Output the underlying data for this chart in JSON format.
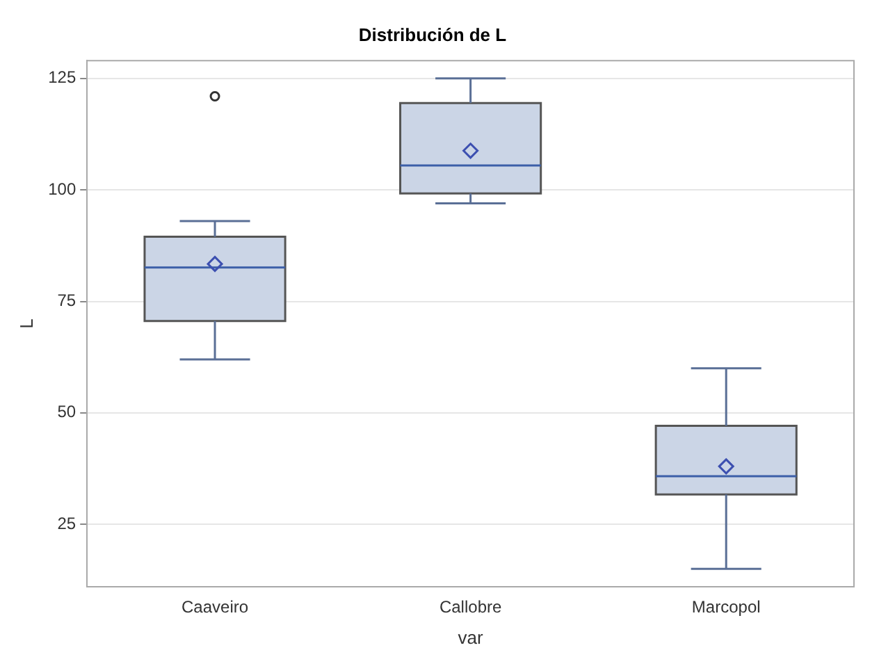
{
  "chart_data": {
    "type": "box",
    "title": "Distribución de L",
    "xlabel": "var",
    "ylabel": "L",
    "categories": [
      "Caaveiro",
      "Callobre",
      "Marcopol"
    ],
    "color": "#cbd5e6",
    "boxes": [
      {
        "low": 62,
        "q1": 70.6,
        "median": 82.6,
        "q3": 89.5,
        "high": 93,
        "mean": 83.4,
        "outliers": [
          121
        ]
      },
      {
        "low": 97,
        "q1": 99.2,
        "median": 105.5,
        "q3": 119.5,
        "high": 125,
        "mean": 108.8
      },
      {
        "low": 15,
        "q1": 31.7,
        "median": 35.8,
        "q3": 47.1,
        "high": 60,
        "mean": 38
      }
    ],
    "ylim": [
      11,
      129
    ],
    "yticks": [
      25,
      50,
      75,
      100,
      125
    ],
    "grid": "y",
    "legend": false
  }
}
